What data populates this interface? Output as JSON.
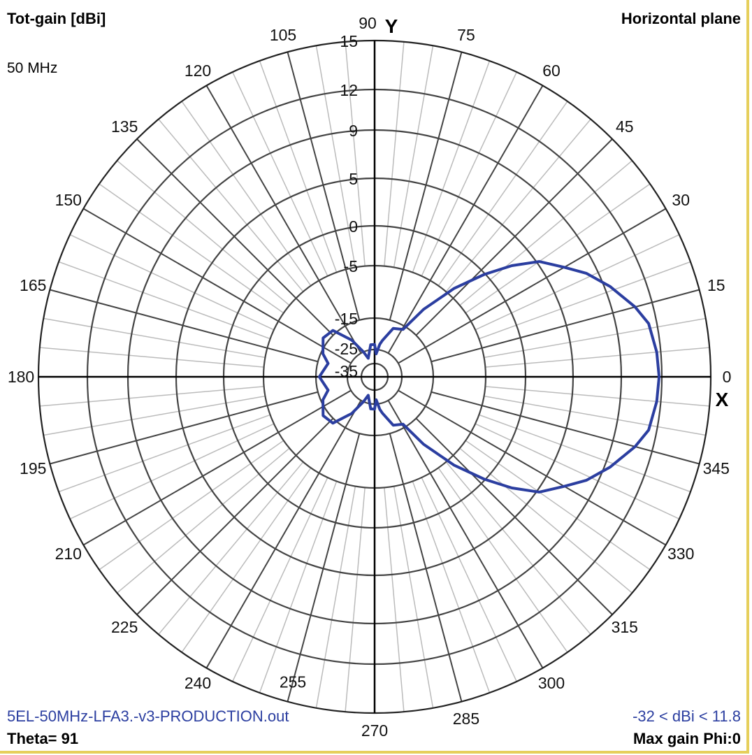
{
  "header": {
    "quantity": "Tot-gain [dBi]",
    "frequency": "50 MHz",
    "plane": "Horizontal plane"
  },
  "footer": {
    "filename": "5EL-50MHz-LFA3.-v3-PRODUCTION.out",
    "range": "-32 < dBi < 11.8",
    "theta": "Theta= 91",
    "max_gain": "Max gain Phi:0"
  },
  "colors": {
    "trace": "#2b3ea0",
    "grid_major": "#444444",
    "grid_minor": "#bbbbbb",
    "axis": "#000000",
    "border": "#e6cf5c"
  },
  "chart_data": {
    "type": "polar-line",
    "title": "Horizontal plane",
    "radial_unit": "dBi",
    "radial_ticks": [
      -35,
      -25,
      -15,
      -5,
      0,
      5,
      9,
      12,
      15
    ],
    "radial_range": [
      -35,
      15
    ],
    "angle_ticks": [
      0,
      15,
      30,
      45,
      60,
      75,
      90,
      105,
      120,
      135,
      150,
      165,
      180,
      195,
      210,
      225,
      240,
      255,
      270,
      285,
      300,
      315,
      330,
      345
    ],
    "axis_labels": {
      "x": "X",
      "y": "Y"
    },
    "grid": true,
    "series": [
      {
        "angles_deg": [
          0,
          5,
          11,
          15,
          21,
          26,
          30,
          35,
          39,
          43,
          48,
          54,
          59,
          69,
          78,
          81,
          86,
          90,
          97,
          109,
          114,
          122,
          132,
          143,
          156,
          164,
          180,
          196,
          204,
          217,
          228,
          238,
          246,
          251,
          263,
          270,
          274,
          279,
          282,
          291,
          301,
          306,
          312,
          317,
          321,
          325,
          330,
          334,
          339,
          345,
          349,
          355
        ],
        "gain_dbi": [
          11.8,
          11.7,
          11.4,
          10.7,
          9.4,
          8.1,
          6.7,
          5.2,
          2.7,
          -0.1,
          -4.0,
          -10.3,
          -16.1,
          -17.2,
          -21.9,
          -23.2,
          -28,
          -23.4,
          -23.4,
          -30.5,
          -25,
          -19.9,
          -14.3,
          -13.9,
          -15.7,
          -18.3,
          -16.1,
          -18.3,
          -15.7,
          -13.9,
          -14.3,
          -19.9,
          -25,
          -30.5,
          -23.4,
          -23.4,
          -28,
          -23.2,
          -21.9,
          -17.2,
          -16.1,
          -10.3,
          -4.0,
          -0.1,
          2.7,
          5.2,
          6.7,
          8.1,
          9.4,
          10.7,
          11.4,
          11.7
        ]
      }
    ]
  }
}
